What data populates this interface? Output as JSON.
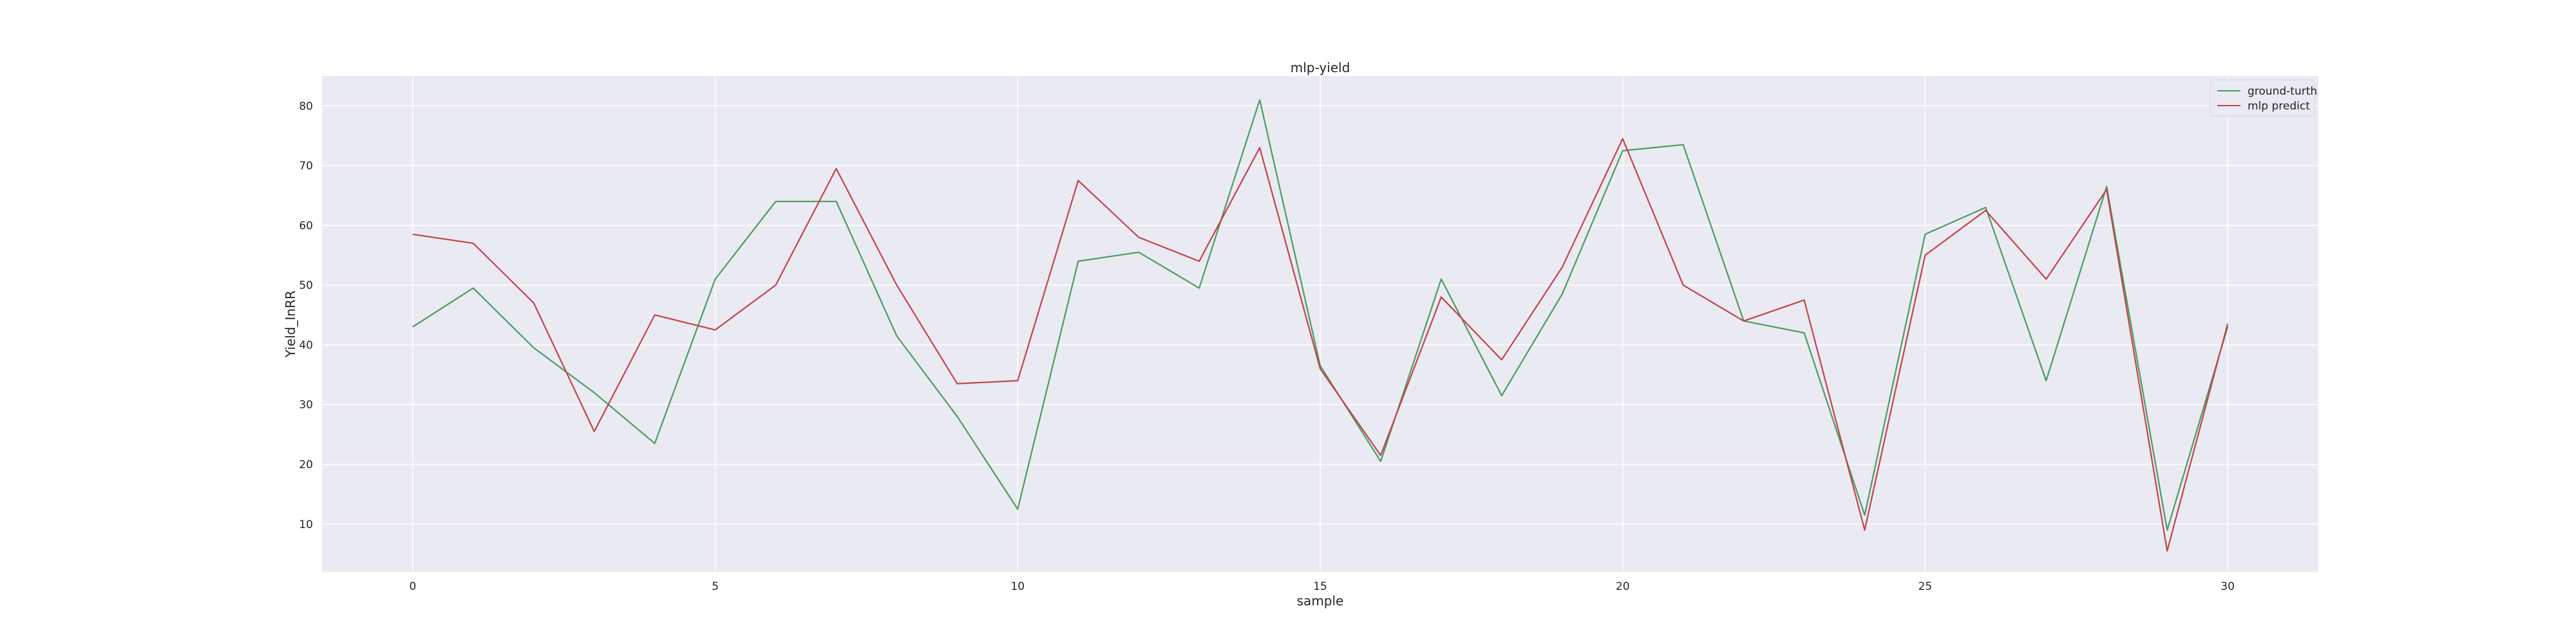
{
  "chart_data": {
    "type": "line",
    "title": "mlp-yield",
    "xlabel": "sample",
    "ylabel": "Yield_InRR",
    "x": [
      0,
      1,
      2,
      3,
      4,
      5,
      6,
      7,
      8,
      9,
      10,
      11,
      12,
      13,
      14,
      15,
      16,
      17,
      18,
      19,
      20,
      21,
      22,
      23,
      24,
      25,
      26,
      27,
      28,
      29,
      30
    ],
    "x_ticks": [
      0,
      5,
      10,
      15,
      20,
      25,
      30
    ],
    "y_ticks": [
      10,
      20,
      30,
      40,
      50,
      60,
      70,
      80
    ],
    "xlim": [
      -1.5,
      31.5
    ],
    "ylim": [
      2,
      85
    ],
    "grid": true,
    "legend_position": "top-right",
    "series": [
      {
        "name": "ground-turth",
        "color": "#4c9a62",
        "values": [
          43,
          49.5,
          39.5,
          32,
          23.5,
          51,
          64,
          64,
          41.5,
          28,
          12.5,
          54,
          55.5,
          49.5,
          81,
          36.5,
          20.5,
          51,
          31.5,
          48.5,
          72.5,
          73.5,
          44,
          42,
          11.5,
          58.5,
          63,
          34,
          66.5,
          9,
          43
        ]
      },
      {
        "name": "mlp predict",
        "color": "#c1434e",
        "values": [
          58.5,
          57,
          47,
          25.5,
          45,
          42.5,
          50,
          69.5,
          50,
          33.5,
          34,
          67.5,
          58,
          54,
          73,
          36,
          21.5,
          48,
          37.5,
          53,
          74.5,
          50,
          44,
          47.5,
          9,
          55,
          62.5,
          51,
          66,
          5.5,
          43.5
        ]
      }
    ]
  }
}
